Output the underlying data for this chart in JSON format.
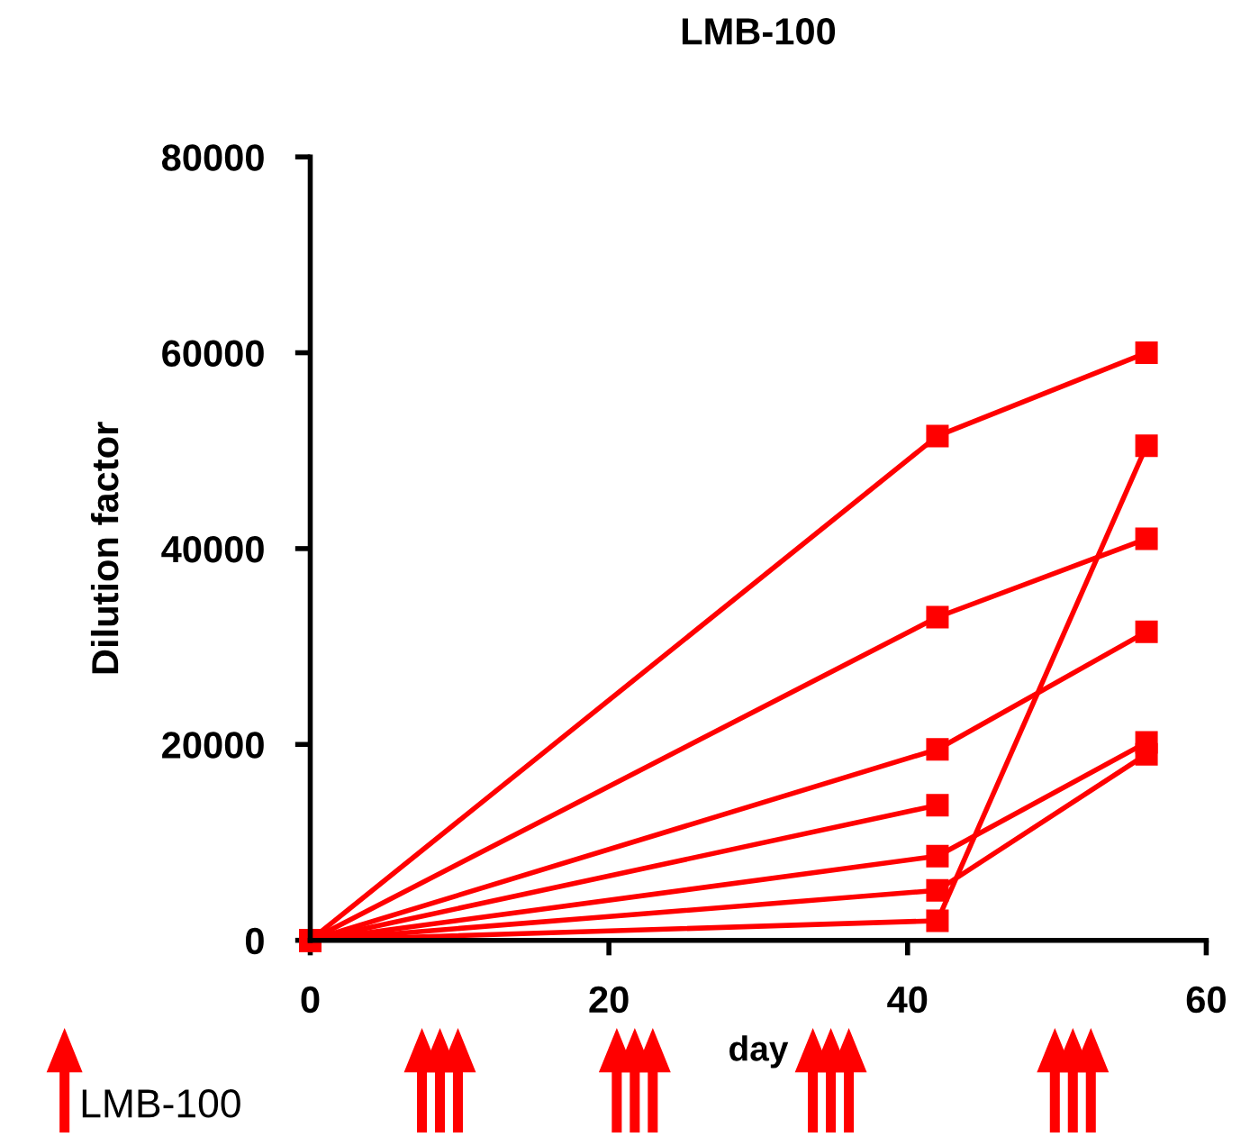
{
  "chart_data": {
    "type": "line",
    "title": "LMB-100",
    "xlabel": "day",
    "ylabel": "Dilution factor",
    "x": [
      0,
      42,
      56
    ],
    "series": [
      {
        "color": "#ff0000",
        "values": [
          0,
          51500,
          60000
        ]
      },
      {
        "color": "#ff0000",
        "values": [
          0,
          33000,
          41000
        ]
      },
      {
        "color": "#ff0000",
        "values": [
          0,
          19500,
          31500
        ]
      },
      {
        "color": "#ff0000",
        "values": [
          0,
          13800,
          null
        ]
      },
      {
        "color": "#ff0000",
        "values": [
          0,
          8600,
          20200
        ]
      },
      {
        "color": "#ff0000",
        "values": [
          0,
          5100,
          19000
        ]
      },
      {
        "color": "#ff0000",
        "values": [
          0,
          2000,
          50500
        ]
      }
    ],
    "xlim": [
      0,
      60
    ],
    "xticks": [
      0,
      20,
      40,
      60
    ],
    "ylim": [
      0,
      80000
    ],
    "yticks": [
      0,
      20000,
      40000,
      60000,
      80000
    ],
    "marker": "square",
    "line_style": "solid",
    "grid": false,
    "legend": false,
    "annotations": [
      "LMB-100"
    ]
  }
}
